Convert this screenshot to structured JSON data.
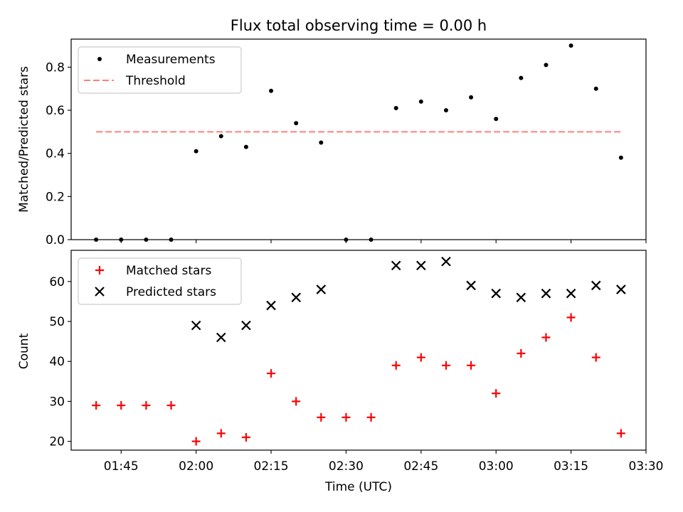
{
  "chart_data": {
    "title": "Flux total observing time = 0.00 h",
    "xlabel": "Time (UTC)",
    "x_tick_labels": [
      "01:45",
      "02:00",
      "02:15",
      "02:30",
      "02:45",
      "03:00",
      "03:15",
      "03:30"
    ],
    "x_range": [
      "01:35",
      "03:30"
    ],
    "times": [
      "01:40",
      "01:45",
      "01:50",
      "01:55",
      "02:00",
      "02:05",
      "02:10",
      "02:15",
      "02:20",
      "02:25",
      "02:30",
      "02:35",
      "02:40",
      "02:45",
      "02:50",
      "02:55",
      "03:00",
      "03:05",
      "03:10",
      "03:15",
      "03:20",
      "03:25"
    ],
    "panels": [
      {
        "type": "scatter",
        "ylabel": "Matched/Predicted stars",
        "ylim": [
          0,
          0.93
        ],
        "y_tick_labels": [
          "0.0",
          "0.2",
          "0.4",
          "0.6",
          "0.8"
        ],
        "legend_position": "upper left",
        "series": [
          {
            "name": "Measurements",
            "marker": "dot",
            "color": "#000000",
            "values": [
              0,
              0,
              0,
              0,
              0.41,
              0.48,
              0.43,
              0.69,
              0.54,
              0.45,
              0,
              0,
              0.61,
              0.64,
              0.6,
              0.66,
              0.56,
              0.75,
              0.81,
              0.9,
              0.7,
              0.38
            ]
          },
          {
            "name": "Threshold",
            "marker": "dashed-line",
            "color": "#ff7f7f",
            "value": 0.5,
            "x_span": [
              "01:40",
              "03:25"
            ]
          }
        ]
      },
      {
        "type": "scatter",
        "ylabel": "Count",
        "ylim": [
          17.8,
          67.8
        ],
        "y_tick_labels": [
          "20",
          "30",
          "40",
          "50",
          "60"
        ],
        "legend_position": "upper left",
        "series": [
          {
            "name": "Matched stars",
            "marker": "plus",
            "color": "#ff0000",
            "values": [
              29,
              29,
              29,
              29,
              20,
              22,
              21,
              37,
              30,
              26,
              26,
              26,
              39,
              41,
              39,
              39,
              32,
              42,
              46,
              51,
              41,
              22
            ]
          },
          {
            "name": "Predicted stars",
            "marker": "x",
            "color": "#000000",
            "values": [
              null,
              null,
              null,
              null,
              49,
              46,
              49,
              54,
              56,
              58,
              null,
              null,
              64,
              64,
              65,
              59,
              57,
              56,
              57,
              57,
              59,
              58
            ]
          }
        ]
      }
    ]
  }
}
